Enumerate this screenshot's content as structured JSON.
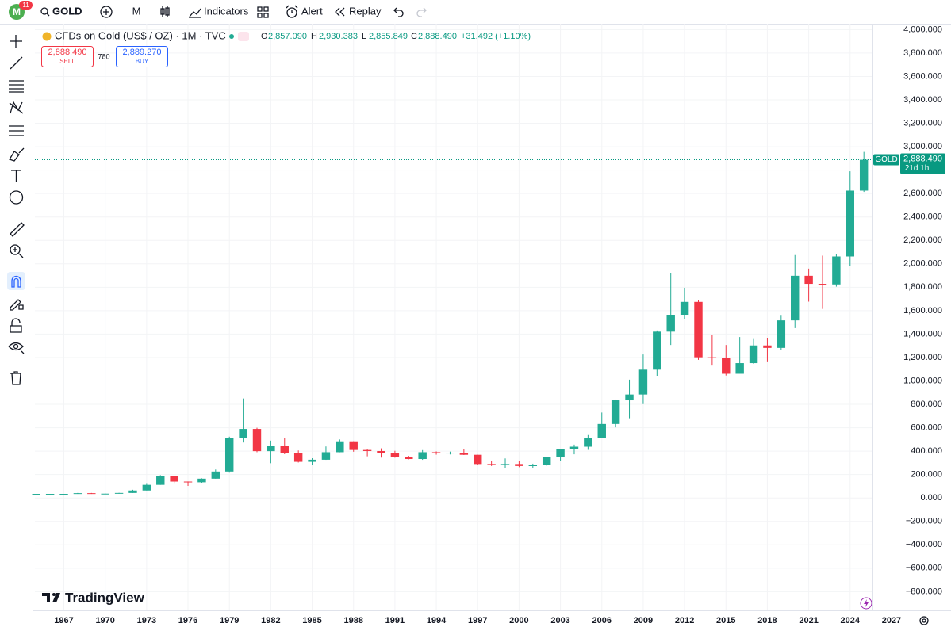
{
  "header": {
    "avatar": "M",
    "badge": "11",
    "symbol": "GOLD",
    "interval": "M",
    "indicators": "Indicators",
    "alert": "Alert",
    "replay": "Replay"
  },
  "legend": {
    "title": "CFDs on Gold (US$ / OZ) · 1M · TVC",
    "o_label": "O",
    "open": "2,857.090",
    "h_label": "H",
    "high": "2,930.383",
    "l_label": "L",
    "low": "2,855.849",
    "c_label": "C",
    "close": "2,888.490",
    "change": "+31.492 (+1.10%)",
    "sell_price": "2,888.490",
    "sell": "SELL",
    "spread": "780",
    "buy_price": "2,889.270",
    "buy": "BUY"
  },
  "branding": "TradingView",
  "chart_data": {
    "type": "candlestick",
    "x": [
      1965,
      1966,
      1967,
      1968,
      1969,
      1970,
      1971,
      1972,
      1973,
      1974,
      1975,
      1976,
      1977,
      1978,
      1979,
      1980,
      1981,
      1982,
      1983,
      1984,
      1985,
      1986,
      1987,
      1988,
      1989,
      1990,
      1991,
      1992,
      1993,
      1994,
      1995,
      1996,
      1997,
      1998,
      1999,
      2000,
      2001,
      2002,
      2003,
      2004,
      2005,
      2006,
      2007,
      2008,
      2009,
      2010,
      2011,
      2012,
      2013,
      2014,
      2015,
      2016,
      2017,
      2018,
      2019,
      2020,
      2021,
      2022,
      2023,
      2024,
      2025
    ],
    "open": [
      35,
      35,
      35,
      35,
      41,
      35,
      37,
      43,
      64,
      112,
      186,
      140,
      134,
      165,
      226,
      512,
      590,
      400,
      448,
      381,
      309,
      327,
      391,
      484,
      410,
      401,
      386,
      353,
      333,
      391,
      383,
      387,
      369,
      290,
      288,
      290,
      273,
      279,
      347,
      416,
      438,
      513,
      632,
      834,
      884,
      1096,
      1421,
      1565,
      1675,
      1202,
      1199,
      1061,
      1152,
      1303,
      1282,
      1517,
      1898,
      1829,
      1824,
      2063,
      2625
    ],
    "high": [
      35,
      35,
      35,
      43,
      43,
      39,
      44,
      70,
      127,
      195,
      187,
      141,
      168,
      243,
      524,
      850,
      600,
      490,
      510,
      406,
      340,
      440,
      500,
      485,
      418,
      424,
      403,
      360,
      409,
      398,
      396,
      416,
      369,
      314,
      338,
      316,
      293,
      349,
      416,
      456,
      538,
      730,
      841,
      1011,
      1226,
      1431,
      1921,
      1796,
      1694,
      1392,
      1307,
      1375,
      1358,
      1366,
      1557,
      2075,
      1959,
      2070,
      2081,
      2790,
      2956
    ],
    "low": [
      35,
      35,
      35,
      35,
      35,
      35,
      37,
      43,
      64,
      112,
      128,
      103,
      130,
      165,
      216,
      474,
      391,
      297,
      374,
      303,
      284,
      326,
      390,
      395,
      356,
      345,
      344,
      330,
      326,
      370,
      372,
      367,
      283,
      273,
      252,
      263,
      255,
      277,
      319,
      373,
      411,
      513,
      603,
      681,
      802,
      1044,
      1307,
      1527,
      1180,
      1131,
      1046,
      1061,
      1146,
      1160,
      1266,
      1451,
      1677,
      1615,
      1805,
      1984,
      2614
    ],
    "close": [
      35,
      35,
      35,
      41,
      35,
      37,
      43,
      64,
      112,
      187,
      140,
      134,
      165,
      226,
      512,
      590,
      400,
      448,
      381,
      309,
      327,
      391,
      484,
      410,
      401,
      386,
      353,
      333,
      391,
      383,
      387,
      369,
      290,
      288,
      290,
      273,
      279,
      347,
      416,
      438,
      513,
      632,
      834,
      884,
      1096,
      1421,
      1565,
      1675,
      1202,
      1199,
      1061,
      1152,
      1303,
      1282,
      1517,
      1898,
      1829,
      1824,
      2063,
      2625,
      2888.49
    ],
    "up_color": "#22ab94",
    "down_color": "#f23645",
    "xlim": [
      1964.9,
      2028.9
    ],
    "xticks": [
      1967,
      1970,
      1973,
      1976,
      1979,
      1982,
      1985,
      1988,
      1991,
      1994,
      1997,
      2000,
      2003,
      2006,
      2009,
      2012,
      2015,
      2018,
      2021,
      2024,
      2027
    ],
    "ylim": [
      -960,
      4050
    ],
    "yticks": [
      {
        "value": 4000,
        "label": "4,000.000"
      },
      {
        "value": 3800,
        "label": "3,800.000"
      },
      {
        "value": 3600,
        "label": "3,600.000"
      },
      {
        "value": 3400,
        "label": "3,400.000"
      },
      {
        "value": 3200,
        "label": "3,200.000"
      },
      {
        "value": 3000,
        "label": "3,000.000"
      },
      {
        "value": 2800,
        "label": "2,800.000"
      },
      {
        "value": 2600,
        "label": "2,600.000"
      },
      {
        "value": 2400,
        "label": "2,400.000"
      },
      {
        "value": 2200,
        "label": "2,200.000"
      },
      {
        "value": 2000,
        "label": "2,000.000"
      },
      {
        "value": 1800,
        "label": "1,800.000"
      },
      {
        "value": 1600,
        "label": "1,600.000"
      },
      {
        "value": 1400,
        "label": "1,400.000"
      },
      {
        "value": 1200,
        "label": "1,200.000"
      },
      {
        "value": 1000,
        "label": "1,000.000"
      },
      {
        "value": 800,
        "label": "800.000"
      },
      {
        "value": 600,
        "label": "600.000"
      },
      {
        "value": 400,
        "label": "400.000"
      },
      {
        "value": 200,
        "label": "200.000"
      },
      {
        "value": 0,
        "label": "0.000"
      },
      {
        "value": -200,
        "label": "−200.000"
      },
      {
        "value": -400,
        "label": "−400.000"
      },
      {
        "value": -600,
        "label": "−600.000"
      },
      {
        "value": -800,
        "label": "−800.000"
      }
    ],
    "grid": true,
    "last_price": {
      "value": 2888.49,
      "label": "2,888.490",
      "symbol": "GOLD",
      "countdown": "21d 1h",
      "color": "#089981"
    }
  }
}
